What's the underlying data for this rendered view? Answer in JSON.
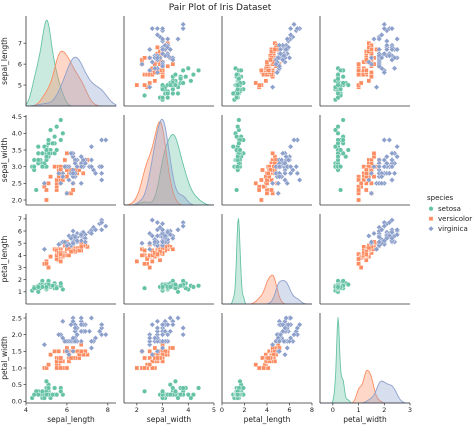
{
  "chart_data": {
    "type": "scatter",
    "title": "Pair Plot of Iris Dataset",
    "variables": [
      "sepal_length",
      "sepal_width",
      "petal_length",
      "petal_width"
    ],
    "diagonal_kind": "kde",
    "legend": {
      "title": "species",
      "placement": "right",
      "entries": [
        "setosa",
        "versicolor",
        "virginica"
      ]
    },
    "colors": {
      "setosa": "#66c2a5",
      "versicolor": "#fc8d62",
      "virginica": "#8da0cb"
    },
    "markers": {
      "setosa": "circle",
      "versicolor": "square",
      "virginica": "diamond"
    },
    "axes": {
      "sepal_length": {
        "range": [
          4,
          8.4
        ],
        "ticks": [
          4,
          6,
          8
        ],
        "row_range": [
          4.0,
          8.3
        ],
        "row_ticks": [
          5,
          6,
          7
        ]
      },
      "sepal_width": {
        "range": [
          1.5,
          5.0
        ],
        "ticks": [
          2,
          3,
          4,
          5
        ],
        "row_range": [
          1.85,
          4.55
        ],
        "row_ticks": [
          2.0,
          2.5,
          3.0,
          3.5,
          4.0,
          4.5
        ]
      },
      "petal_length": {
        "range": [
          0,
          8
        ],
        "ticks": [
          0,
          2,
          4,
          6,
          8
        ],
        "row_range": [
          0,
          7.4
        ],
        "row_ticks": [
          1,
          2,
          3,
          4,
          5,
          6,
          7
        ]
      },
      "petal_width": {
        "range": [
          -0.5,
          3
        ],
        "ticks": [
          0,
          1,
          2,
          3
        ],
        "row_range": [
          -0.05,
          2.65
        ],
        "row_ticks": [
          0.0,
          0.5,
          1.0,
          1.5,
          2.0,
          2.5
        ]
      }
    },
    "series": [
      {
        "name": "setosa",
        "columns": [
          "sepal_length",
          "sepal_width",
          "petal_length",
          "petal_width"
        ],
        "points": [
          [
            5.1,
            3.5,
            1.4,
            0.2
          ],
          [
            4.9,
            3.0,
            1.4,
            0.2
          ],
          [
            4.7,
            3.2,
            1.3,
            0.2
          ],
          [
            4.6,
            3.1,
            1.5,
            0.2
          ],
          [
            5.0,
            3.6,
            1.4,
            0.2
          ],
          [
            5.4,
            3.9,
            1.7,
            0.4
          ],
          [
            4.6,
            3.4,
            1.4,
            0.3
          ],
          [
            5.0,
            3.4,
            1.5,
            0.2
          ],
          [
            4.4,
            2.9,
            1.4,
            0.2
          ],
          [
            4.9,
            3.1,
            1.5,
            0.1
          ],
          [
            5.4,
            3.7,
            1.5,
            0.2
          ],
          [
            4.8,
            3.4,
            1.6,
            0.2
          ],
          [
            4.8,
            3.0,
            1.4,
            0.1
          ],
          [
            4.3,
            3.0,
            1.1,
            0.1
          ],
          [
            5.8,
            4.0,
            1.2,
            0.2
          ],
          [
            5.7,
            4.4,
            1.5,
            0.4
          ],
          [
            5.4,
            3.9,
            1.3,
            0.4
          ],
          [
            5.1,
            3.5,
            1.4,
            0.3
          ],
          [
            5.7,
            3.8,
            1.7,
            0.3
          ],
          [
            5.1,
            3.8,
            1.5,
            0.3
          ],
          [
            5.4,
            3.4,
            1.7,
            0.2
          ],
          [
            5.1,
            3.7,
            1.5,
            0.4
          ],
          [
            4.6,
            3.6,
            1.0,
            0.2
          ],
          [
            5.1,
            3.3,
            1.7,
            0.5
          ],
          [
            4.8,
            3.4,
            1.9,
            0.2
          ],
          [
            5.0,
            3.0,
            1.6,
            0.2
          ],
          [
            5.0,
            3.4,
            1.6,
            0.4
          ],
          [
            5.2,
            3.5,
            1.5,
            0.2
          ],
          [
            5.2,
            3.4,
            1.4,
            0.2
          ],
          [
            4.7,
            3.2,
            1.6,
            0.2
          ],
          [
            4.8,
            3.1,
            1.6,
            0.2
          ],
          [
            5.4,
            3.4,
            1.5,
            0.4
          ],
          [
            5.2,
            4.1,
            1.5,
            0.1
          ],
          [
            5.5,
            4.2,
            1.4,
            0.2
          ],
          [
            4.9,
            3.1,
            1.5,
            0.2
          ],
          [
            5.0,
            3.2,
            1.2,
            0.2
          ],
          [
            5.5,
            3.5,
            1.3,
            0.2
          ],
          [
            4.9,
            3.6,
            1.4,
            0.1
          ],
          [
            4.4,
            3.0,
            1.3,
            0.2
          ],
          [
            5.1,
            3.4,
            1.5,
            0.2
          ],
          [
            5.0,
            3.5,
            1.3,
            0.3
          ],
          [
            4.5,
            2.3,
            1.3,
            0.3
          ],
          [
            4.4,
            3.2,
            1.3,
            0.2
          ],
          [
            5.0,
            3.5,
            1.6,
            0.6
          ],
          [
            5.1,
            3.8,
            1.9,
            0.4
          ],
          [
            4.8,
            3.0,
            1.4,
            0.3
          ],
          [
            5.1,
            3.8,
            1.6,
            0.2
          ],
          [
            4.6,
            3.2,
            1.4,
            0.2
          ],
          [
            5.3,
            3.7,
            1.5,
            0.2
          ],
          [
            5.0,
            3.3,
            1.4,
            0.2
          ]
        ]
      },
      {
        "name": "versicolor",
        "columns": [
          "sepal_length",
          "sepal_width",
          "petal_length",
          "petal_width"
        ],
        "points": [
          [
            7.0,
            3.2,
            4.7,
            1.4
          ],
          [
            6.4,
            3.2,
            4.5,
            1.5
          ],
          [
            6.9,
            3.1,
            4.9,
            1.5
          ],
          [
            5.5,
            2.3,
            4.0,
            1.3
          ],
          [
            6.5,
            2.8,
            4.6,
            1.5
          ],
          [
            5.7,
            2.8,
            4.5,
            1.3
          ],
          [
            6.3,
            3.3,
            4.7,
            1.6
          ],
          [
            4.9,
            2.4,
            3.3,
            1.0
          ],
          [
            6.6,
            2.9,
            4.6,
            1.3
          ],
          [
            5.2,
            2.7,
            3.9,
            1.4
          ],
          [
            5.0,
            2.0,
            3.5,
            1.0
          ],
          [
            5.9,
            3.0,
            4.2,
            1.5
          ],
          [
            6.0,
            2.2,
            4.0,
            1.0
          ],
          [
            6.1,
            2.9,
            4.7,
            1.4
          ],
          [
            5.6,
            2.9,
            3.6,
            1.3
          ],
          [
            6.7,
            3.1,
            4.4,
            1.4
          ],
          [
            5.6,
            3.0,
            4.5,
            1.5
          ],
          [
            5.8,
            2.7,
            4.1,
            1.0
          ],
          [
            6.2,
            2.2,
            4.5,
            1.5
          ],
          [
            5.6,
            2.5,
            3.9,
            1.1
          ],
          [
            5.9,
            3.2,
            4.8,
            1.8
          ],
          [
            6.1,
            2.8,
            4.0,
            1.3
          ],
          [
            6.3,
            2.5,
            4.9,
            1.5
          ],
          [
            6.1,
            2.8,
            4.7,
            1.2
          ],
          [
            6.4,
            2.9,
            4.3,
            1.3
          ],
          [
            6.6,
            3.0,
            4.4,
            1.4
          ],
          [
            6.8,
            2.8,
            4.8,
            1.4
          ],
          [
            6.7,
            3.0,
            5.0,
            1.7
          ],
          [
            6.0,
            2.9,
            4.5,
            1.5
          ],
          [
            5.7,
            2.6,
            3.5,
            1.0
          ],
          [
            5.5,
            2.4,
            3.8,
            1.1
          ],
          [
            5.5,
            2.4,
            3.7,
            1.0
          ],
          [
            5.8,
            2.7,
            3.9,
            1.2
          ],
          [
            6.0,
            2.7,
            5.1,
            1.6
          ],
          [
            5.4,
            3.0,
            4.5,
            1.5
          ],
          [
            6.0,
            3.4,
            4.5,
            1.6
          ],
          [
            6.7,
            3.1,
            4.7,
            1.5
          ],
          [
            6.3,
            2.3,
            4.4,
            1.3
          ],
          [
            5.6,
            3.0,
            4.1,
            1.3
          ],
          [
            5.5,
            2.5,
            4.0,
            1.3
          ],
          [
            5.5,
            2.6,
            4.4,
            1.2
          ],
          [
            6.1,
            3.0,
            4.6,
            1.4
          ],
          [
            5.8,
            2.6,
            4.0,
            1.2
          ],
          [
            5.0,
            2.3,
            3.3,
            1.0
          ],
          [
            5.6,
            2.7,
            4.2,
            1.3
          ],
          [
            5.7,
            3.0,
            4.2,
            1.2
          ],
          [
            5.7,
            2.9,
            4.2,
            1.3
          ],
          [
            6.2,
            2.9,
            4.3,
            1.3
          ],
          [
            5.1,
            2.5,
            3.0,
            1.1
          ],
          [
            5.7,
            2.8,
            4.1,
            1.3
          ]
        ]
      },
      {
        "name": "virginica",
        "columns": [
          "sepal_length",
          "sepal_width",
          "petal_length",
          "petal_width"
        ],
        "points": [
          [
            6.3,
            3.3,
            6.0,
            2.5
          ],
          [
            5.8,
            2.7,
            5.1,
            1.9
          ],
          [
            7.1,
            3.0,
            5.9,
            2.1
          ],
          [
            6.3,
            2.9,
            5.6,
            1.8
          ],
          [
            6.5,
            3.0,
            5.8,
            2.2
          ],
          [
            7.6,
            3.0,
            6.6,
            2.1
          ],
          [
            4.9,
            2.5,
            4.5,
            1.7
          ],
          [
            7.3,
            2.9,
            6.3,
            1.8
          ],
          [
            6.7,
            2.5,
            5.8,
            1.8
          ],
          [
            7.2,
            3.6,
            6.1,
            2.5
          ],
          [
            6.5,
            3.2,
            5.1,
            2.0
          ],
          [
            6.4,
            2.7,
            5.3,
            1.9
          ],
          [
            6.8,
            3.0,
            5.5,
            2.1
          ],
          [
            5.7,
            2.5,
            5.0,
            2.0
          ],
          [
            5.8,
            2.8,
            5.1,
            2.4
          ],
          [
            6.4,
            3.2,
            5.3,
            2.3
          ],
          [
            6.5,
            3.0,
            5.5,
            1.8
          ],
          [
            7.7,
            3.8,
            6.7,
            2.2
          ],
          [
            7.7,
            2.6,
            6.9,
            2.3
          ],
          [
            6.0,
            2.2,
            5.0,
            1.5
          ],
          [
            6.9,
            3.2,
            5.7,
            2.3
          ],
          [
            5.6,
            2.8,
            4.9,
            2.0
          ],
          [
            7.7,
            2.8,
            6.7,
            2.0
          ],
          [
            6.3,
            2.7,
            4.9,
            1.8
          ],
          [
            6.7,
            3.3,
            5.7,
            2.1
          ],
          [
            7.2,
            3.2,
            6.0,
            1.8
          ],
          [
            6.2,
            2.8,
            4.8,
            1.8
          ],
          [
            6.1,
            3.0,
            4.9,
            1.8
          ],
          [
            6.4,
            2.8,
            5.6,
            2.1
          ],
          [
            7.2,
            3.0,
            5.8,
            1.6
          ],
          [
            7.4,
            2.8,
            6.1,
            1.9
          ],
          [
            7.9,
            3.8,
            6.4,
            2.0
          ],
          [
            6.4,
            2.8,
            5.6,
            2.2
          ],
          [
            6.3,
            2.8,
            5.1,
            1.5
          ],
          [
            6.1,
            2.6,
            5.6,
            1.4
          ],
          [
            7.7,
            3.0,
            6.1,
            2.3
          ],
          [
            6.3,
            3.4,
            5.6,
            2.4
          ],
          [
            6.4,
            3.1,
            5.5,
            1.8
          ],
          [
            6.0,
            3.0,
            4.8,
            1.8
          ],
          [
            6.9,
            3.1,
            5.4,
            2.1
          ],
          [
            6.7,
            3.1,
            5.6,
            2.4
          ],
          [
            6.9,
            3.1,
            5.1,
            2.3
          ],
          [
            5.8,
            2.7,
            5.1,
            1.9
          ],
          [
            6.8,
            3.2,
            5.9,
            2.3
          ],
          [
            6.7,
            3.3,
            5.7,
            2.5
          ],
          [
            6.7,
            3.0,
            5.2,
            2.3
          ],
          [
            6.3,
            2.5,
            5.0,
            1.9
          ],
          [
            6.5,
            3.0,
            5.2,
            2.0
          ],
          [
            6.2,
            3.4,
            5.4,
            2.3
          ],
          [
            5.9,
            3.0,
            5.1,
            1.8
          ]
        ]
      }
    ]
  }
}
